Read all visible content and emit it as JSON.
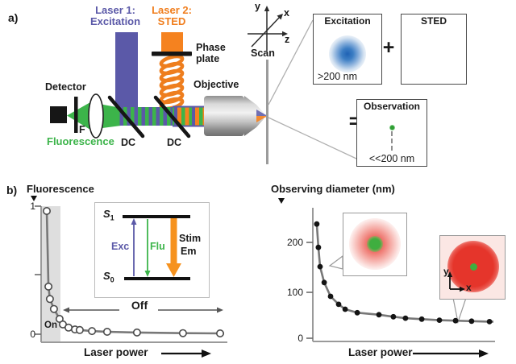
{
  "colors": {
    "excitation_blue": "#5b59a8",
    "sted_orange": "#f5821f",
    "fluorescence_green": "#3cb44a",
    "depletion_red": "#e6352b"
  },
  "panel_a": {
    "label": "a)",
    "laser1": {
      "line1": "Laser 1:",
      "line2": "Excitation"
    },
    "laser2": {
      "line1": "Laser 2:",
      "line2": "STED"
    },
    "phase_plate_label": "Phase plate",
    "detector_label": "Detector",
    "filter_label": "F",
    "fluorescence_label": "Fluorescence",
    "dc1_label": "DC",
    "dc2_label": "DC",
    "objective_label": "Objective",
    "scan_label": "Scan",
    "axis_x": "x",
    "axis_y": "y",
    "axis_z": "z",
    "plus_sign": "+",
    "equals_sign": "=",
    "excitation_box": {
      "title": "Excitation",
      "caption": ">200 nm"
    },
    "sted_box": {
      "title": "STED"
    },
    "observation_box": {
      "title": "Observation",
      "caption": "<<200 nm"
    }
  },
  "panel_b": {
    "label": "b)",
    "energy_inset": {
      "s1_main": "S",
      "s1_sub": "1",
      "s0_main": "S",
      "s0_sub": "0",
      "exc_label": "Exc",
      "flu_label": "Flu",
      "stim_label_line1": "Stim",
      "stim_label_line2": "Em"
    }
  },
  "chart_data": [
    {
      "type": "scatter",
      "title": "Fluorescence",
      "ylabel": "Fluorescence",
      "xlabel": "Laser power",
      "marker": "open-circle",
      "xlim": [
        0,
        1
      ],
      "ylim": [
        0,
        1
      ],
      "yticks": [
        0,
        1
      ],
      "annotations": [
        "On",
        "Off"
      ],
      "x": [
        0.031,
        0.04,
        0.048,
        0.07,
        0.101,
        0.119,
        0.15,
        0.185,
        0.211,
        0.278,
        0.361,
        0.524,
        0.775,
        0.978
      ],
      "y": [
        1.0,
        0.39,
        0.29,
        0.21,
        0.13,
        0.085,
        0.06,
        0.045,
        0.04,
        0.032,
        0.026,
        0.02,
        0.015,
        0.013
      ]
    },
    {
      "type": "scatter",
      "title": "Observing diameter (nm)",
      "ylabel": "Observing diameter (nm)",
      "xlabel": "Laser power",
      "marker": "filled-circle",
      "xlim": [
        0,
        1
      ],
      "ylim": [
        0,
        260
      ],
      "yticks": [
        0,
        100,
        200
      ],
      "inset_axes": {
        "x": "x",
        "y": "y"
      },
      "x": [
        0.022,
        0.031,
        0.04,
        0.063,
        0.098,
        0.143,
        0.179,
        0.246,
        0.366,
        0.446,
        0.513,
        0.603,
        0.701,
        0.79,
        0.879,
        0.978
      ],
      "y": [
        237,
        190,
        151,
        119,
        91,
        75,
        65,
        58,
        54,
        50,
        47,
        45,
        43,
        42,
        41,
        40
      ]
    }
  ]
}
